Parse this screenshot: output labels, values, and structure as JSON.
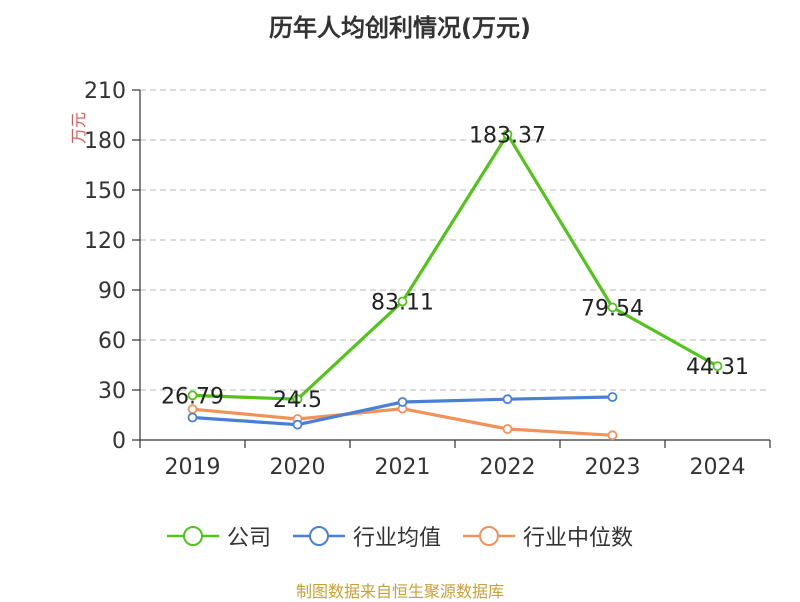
{
  "chart_data": {
    "type": "line",
    "title": "历年人均创利情况(万元)",
    "ylabel": "万元",
    "xlabel": "",
    "categories": [
      "2019",
      "2020",
      "2021",
      "2022",
      "2023",
      "2024"
    ],
    "ylim": [
      0,
      210
    ],
    "yticks": [
      0,
      30,
      60,
      90,
      120,
      150,
      180,
      210
    ],
    "grid": true,
    "legend_position": "bottom",
    "series": [
      {
        "name": "公司",
        "color": "#52c41a",
        "values": [
          26.79,
          24.5,
          83.11,
          183.37,
          79.54,
          44.31
        ],
        "labels": [
          "26.79",
          "24.5",
          "83.11",
          "183.37",
          "79.54",
          "44.31"
        ]
      },
      {
        "name": "行业均值",
        "color": "#4a7fd6",
        "values": [
          13.5,
          9.2,
          22.8,
          24.5,
          25.8,
          null
        ],
        "labels": []
      },
      {
        "name": "行业中位数",
        "color": "#f2925b",
        "values": [
          18.5,
          12.6,
          18.8,
          6.6,
          2.8,
          null
        ],
        "labels": []
      }
    ]
  },
  "footer": {
    "source": "制图数据来自恒生聚源数据库"
  }
}
